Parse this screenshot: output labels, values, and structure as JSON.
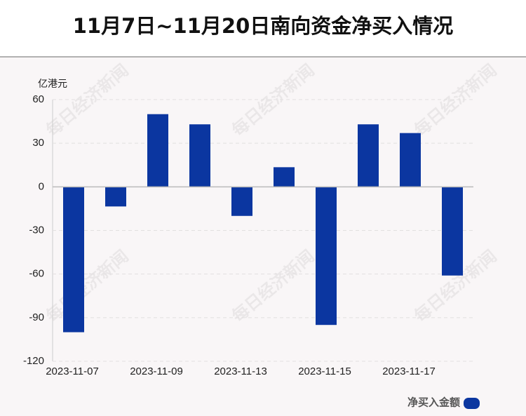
{
  "chart_data": {
    "type": "bar",
    "title": "11月7日~11月20日南向资金净买入情况",
    "y_axis_label": "亿港元",
    "watermark": "每日经济新闻",
    "categories": [
      "2023-11-07",
      null,
      "2023-11-09",
      null,
      "2023-11-13",
      null,
      "2023-11-15",
      null,
      "2023-11-17",
      null
    ],
    "series": [
      {
        "name": "净买入金额",
        "color": "#0b36a0",
        "values": [
          -100,
          -13.5,
          50,
          43,
          -20,
          13.5,
          -95,
          43,
          37,
          -61
        ]
      }
    ],
    "ylim": [
      -120,
      60
    ],
    "yticks": [
      -120,
      -90,
      -60,
      -30,
      0,
      30,
      60
    ],
    "grid": true
  }
}
